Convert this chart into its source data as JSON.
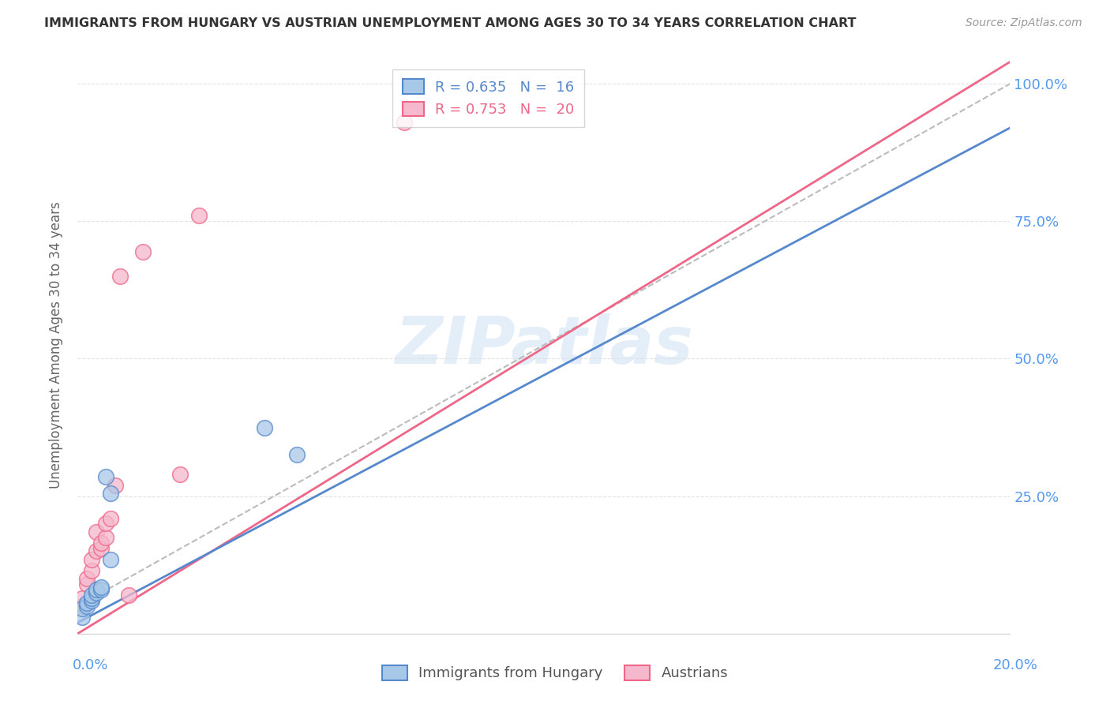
{
  "title": "IMMIGRANTS FROM HUNGARY VS AUSTRIAN UNEMPLOYMENT AMONG AGES 30 TO 34 YEARS CORRELATION CHART",
  "source": "Source: ZipAtlas.com",
  "ylabel": "Unemployment Among Ages 30 to 34 years",
  "xlim": [
    0.0,
    0.2
  ],
  "ylim": [
    0.0,
    1.05
  ],
  "ytick_labels": [
    "100.0%",
    "75.0%",
    "50.0%",
    "25.0%"
  ],
  "ytick_positions": [
    1.0,
    0.75,
    0.5,
    0.25
  ],
  "background_color": "#ffffff",
  "watermark": "ZIPatlas",
  "blue_color": "#a8c8e8",
  "pink_color": "#f5b8cc",
  "blue_line_color": "#5588cc",
  "pink_line_color": "#ee6688",
  "dashed_line_color": "#bbbbbb",
  "grid_color": "#e0e0e0",
  "title_color": "#333333",
  "right_axis_color": "#5599ee",
  "immigrants_x": [
    0.001,
    0.001,
    0.002,
    0.002,
    0.003,
    0.003,
    0.003,
    0.004,
    0.004,
    0.005,
    0.005,
    0.006,
    0.007,
    0.007,
    0.04,
    0.047
  ],
  "immigrants_y": [
    0.03,
    0.045,
    0.05,
    0.055,
    0.06,
    0.065,
    0.07,
    0.075,
    0.08,
    0.08,
    0.085,
    0.285,
    0.255,
    0.135,
    0.375,
    0.325
  ],
  "austrians_x": [
    0.001,
    0.001,
    0.002,
    0.002,
    0.003,
    0.003,
    0.004,
    0.004,
    0.005,
    0.005,
    0.006,
    0.006,
    0.007,
    0.008,
    0.009,
    0.011,
    0.014,
    0.022,
    0.026,
    0.07
  ],
  "austrians_y": [
    0.05,
    0.065,
    0.09,
    0.1,
    0.115,
    0.135,
    0.15,
    0.185,
    0.155,
    0.165,
    0.175,
    0.2,
    0.21,
    0.27,
    0.65,
    0.07,
    0.695,
    0.29,
    0.76,
    0.93
  ],
  "blue_trendline_x": [
    0.0,
    0.2
  ],
  "blue_trendline_y": [
    0.02,
    0.92
  ],
  "pink_trendline_x": [
    0.0,
    0.2
  ],
  "pink_trendline_y": [
    0.0,
    1.04
  ],
  "dashed_line_x": [
    0.0,
    0.2
  ],
  "dashed_line_y": [
    0.05,
    1.0
  ]
}
